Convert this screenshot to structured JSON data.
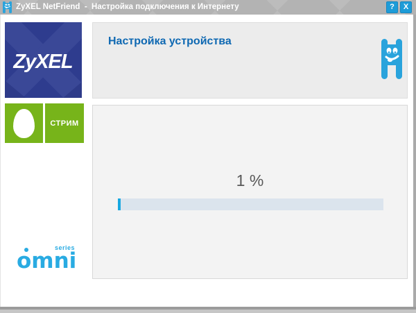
{
  "titlebar": {
    "title": "ZyXEL NetFriend  -  Настройка подключения к Интернету",
    "help_button": "?",
    "close_button": "X"
  },
  "sidebar": {
    "zyxel_logo": "ZyXEL",
    "stream_logo": "СТРИМ",
    "omni_logo": "omni",
    "omni_series": "series"
  },
  "content": {
    "header_title": "Настройка устройства",
    "progress_text": "1 %",
    "progress_percent": 1
  },
  "colors": {
    "titlebar_gray": "#b3b3b3",
    "titlebar_button_blue": "#1e9cd8",
    "zyxel_navy": "#2e3c8e",
    "stream_green": "#77b41a",
    "mascot_blue": "#29a3dc",
    "omni_blue": "#29abe2",
    "header_text_blue": "#0e68b2",
    "progress_track": "#dbe4ed",
    "progress_fill": "#18a8e1",
    "progress_text_gray": "#585858"
  }
}
